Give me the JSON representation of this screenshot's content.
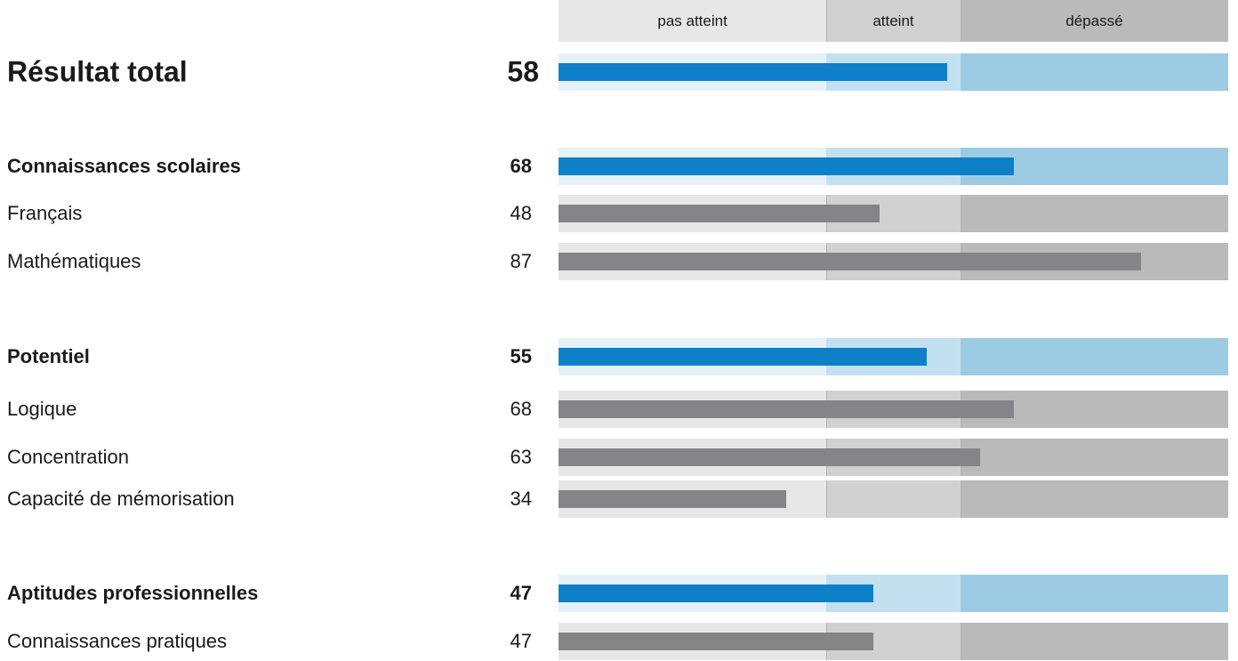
{
  "header": {
    "zones": [
      {
        "label": "pas atteint",
        "from": 0,
        "to": 40
      },
      {
        "label": "atteint",
        "from": 40,
        "to": 60
      },
      {
        "label": "dépassé",
        "from": 60,
        "to": 100
      }
    ]
  },
  "colors": {
    "header_zones": [
      "#e7e7e7",
      "#d1d1d1",
      "#bababa"
    ],
    "summary_track": [
      "#e6f2fa",
      "#c3e0f1",
      "#9dcbe4"
    ],
    "detail_track": [
      "#e7e7e7",
      "#d1d1d1",
      "#bababa"
    ],
    "summary_bar": "#0d80c8",
    "detail_bar": "#858588"
  },
  "chart_data": {
    "type": "bar",
    "orientation": "horizontal",
    "xlim": [
      0,
      100
    ],
    "rows": [
      {
        "label": "Résultat total",
        "value": 58,
        "level": "total"
      },
      {
        "label": "Connaissances scolaires",
        "value": 68,
        "level": "summary"
      },
      {
        "label": "Français",
        "value": 48,
        "level": "detail"
      },
      {
        "label": "Mathématiques",
        "value": 87,
        "level": "detail"
      },
      {
        "label": "Potentiel",
        "value": 55,
        "level": "summary"
      },
      {
        "label": "Logique",
        "value": 68,
        "level": "detail"
      },
      {
        "label": "Concentration",
        "value": 63,
        "level": "detail"
      },
      {
        "label": "Capacité de mémorisation",
        "value": 34,
        "level": "detail"
      },
      {
        "label": "Aptitudes professionnelles",
        "value": 47,
        "level": "summary"
      },
      {
        "label": "Connaissances pratiques",
        "value": 47,
        "level": "detail"
      }
    ]
  }
}
